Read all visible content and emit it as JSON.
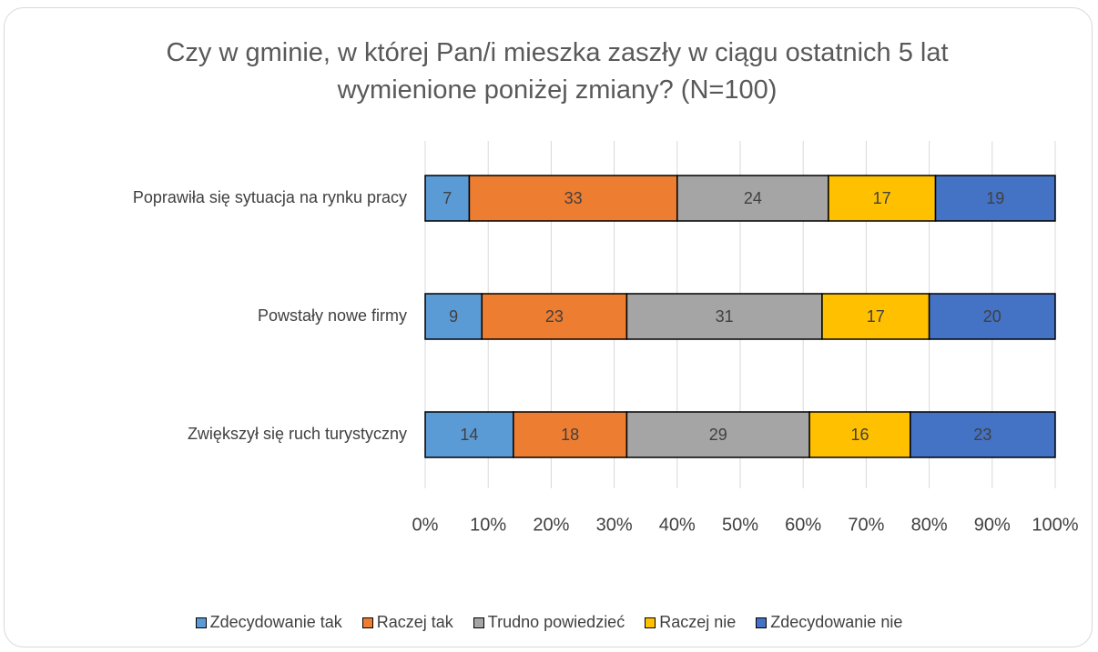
{
  "chart_data": {
    "type": "stacked_barh",
    "title": "Czy w gminie, w której Pan/i mieszka zaszły w ciągu ostatnich 5 lat wymienione poniżej zmiany? (N=100)",
    "categories": [
      "Poprawiła się sytuacja na rynku pracy",
      "Powstały nowe firmy",
      "Zwiększył się ruch turystyczny"
    ],
    "series": [
      {
        "name": "Zdecydowanie tak",
        "color": "#5b9bd5",
        "values": [
          7,
          9,
          14
        ]
      },
      {
        "name": "Raczej tak",
        "color": "#ed7d31",
        "values": [
          33,
          23,
          18
        ]
      },
      {
        "name": "Trudno powiedzieć",
        "color": "#a5a5a5",
        "values": [
          24,
          31,
          29
        ]
      },
      {
        "name": "Raczej nie",
        "color": "#ffc000",
        "values": [
          17,
          17,
          16
        ]
      },
      {
        "name": "Zdecydowanie nie",
        "color": "#4472c4",
        "values": [
          19,
          20,
          23
        ]
      }
    ],
    "xlim": [
      0,
      100
    ],
    "xticks": [
      {
        "value": 0,
        "label": "0%"
      },
      {
        "value": 10,
        "label": "10%"
      },
      {
        "value": 20,
        "label": "20%"
      },
      {
        "value": 30,
        "label": "30%"
      },
      {
        "value": 40,
        "label": "40%"
      },
      {
        "value": 50,
        "label": "50%"
      },
      {
        "value": 60,
        "label": "60%"
      },
      {
        "value": 70,
        "label": "70%"
      },
      {
        "value": 80,
        "label": "80%"
      },
      {
        "value": 90,
        "label": "90%"
      },
      {
        "value": 100,
        "label": "100%"
      }
    ],
    "grid": true,
    "legend": "bottom"
  }
}
